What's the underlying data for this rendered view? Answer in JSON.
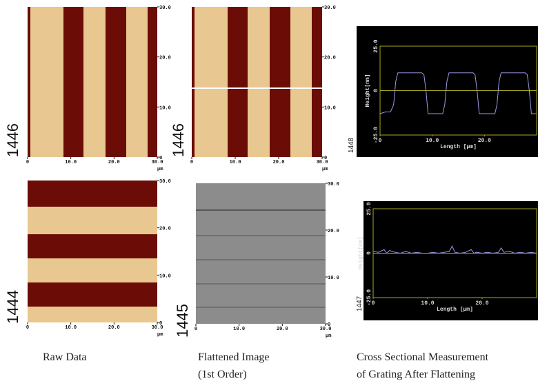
{
  "panels": [
    {
      "label": "1446",
      "unit": "µm",
      "xticks": [
        0,
        {
          "value": 10,
          "label": "10.0"
        },
        {
          "value": 20,
          "label": "20.0"
        },
        {
          "value": 30,
          "label": "30.0"
        }
      ],
      "yticks": [
        0,
        {
          "value": 10,
          "label": "10.0"
        },
        {
          "value": 20,
          "label": "20.0"
        },
        {
          "value": 30,
          "label": "30.0"
        }
      ]
    },
    {
      "label": "1446",
      "unit": "µm",
      "xticks": [
        0,
        {
          "value": 10,
          "label": "10.0"
        },
        {
          "value": 20,
          "label": "20.0"
        },
        {
          "value": 30,
          "label": "30.0"
        }
      ],
      "yticks": [
        0,
        {
          "value": 10,
          "label": "10.0"
        },
        {
          "value": 20,
          "label": "20.0"
        },
        {
          "value": 30,
          "label": "30.0"
        }
      ]
    },
    {
      "label": "1444",
      "unit": "µm",
      "xticks": [
        0,
        {
          "value": 10,
          "label": "10.0"
        },
        {
          "value": 20,
          "label": "20.0"
        },
        {
          "value": 30,
          "label": "30.0"
        }
      ],
      "yticks": [
        0,
        {
          "value": 10,
          "label": "10.0"
        },
        {
          "value": 20,
          "label": "20.0"
        },
        {
          "value": 30,
          "label": "30.0"
        }
      ]
    },
    {
      "label": "1445",
      "unit": "µm",
      "xticks": [
        0,
        {
          "value": 10,
          "label": "10.0"
        },
        {
          "value": 20,
          "label": "20.0"
        },
        {
          "value": 30,
          "label": "30.0"
        }
      ],
      "yticks": [
        0,
        {
          "value": 10,
          "label": "10.0"
        },
        {
          "value": 20,
          "label": "20.0"
        },
        {
          "value": 30,
          "label": "30.0"
        }
      ]
    }
  ],
  "profiles": [
    {
      "label": "1448",
      "x_label": "Length [µm]",
      "y_label": "Height[nm]",
      "xlim": [
        0,
        30
      ],
      "ylim": [
        -25,
        25
      ],
      "xticks": [
        0,
        {
          "value": 10,
          "label": "10.0"
        },
        {
          "value": 20,
          "label": "20.0"
        }
      ],
      "yticks": [
        {
          "value": 25,
          "label": "25.0"
        },
        0,
        {
          "value": -25,
          "label": "-25.0"
        }
      ],
      "x": [
        0,
        1,
        2,
        2.6,
        3,
        3.4,
        8,
        8.4,
        8.8,
        9.2,
        12,
        12.4,
        12.8,
        13.2,
        17.8,
        18.2,
        18.6,
        19,
        22,
        22.4,
        22.8,
        23.2,
        27.8,
        28.2,
        28.6,
        29,
        30
      ],
      "y": [
        -13,
        -12,
        -12,
        -8,
        5,
        10,
        10,
        9,
        0,
        -13,
        -13,
        -8,
        5,
        10,
        10,
        9,
        0,
        -13,
        -13,
        -8,
        5,
        10,
        10,
        9,
        0,
        -13,
        -13
      ]
    },
    {
      "label": "1447",
      "x_label": "Length [µm]",
      "y_label": "Height[nm]",
      "xlim": [
        0,
        30
      ],
      "ylim": [
        -25,
        25
      ],
      "xticks": [
        0,
        {
          "value": 10,
          "label": "10.0"
        },
        {
          "value": 20,
          "label": "20.0"
        }
      ],
      "yticks": [
        {
          "value": 25,
          "label": "25.0"
        },
        0,
        {
          "value": -25,
          "label": "-25.0"
        }
      ],
      "x": [
        0,
        1,
        2,
        2.5,
        3,
        4,
        5,
        6,
        7,
        8,
        9,
        10,
        11,
        12,
        13,
        14,
        14.5,
        15,
        16,
        17,
        18,
        18.5,
        19,
        20,
        21,
        22,
        23,
        23.5,
        24,
        25,
        26,
        27,
        28,
        29,
        30
      ],
      "y": [
        1,
        0.5,
        2,
        0,
        1.5,
        0.5,
        0,
        1,
        0,
        0.5,
        0,
        0,
        0.5,
        0,
        0.5,
        1,
        4,
        0.5,
        0,
        0.5,
        2,
        0,
        0.5,
        0,
        0.5,
        0,
        0.5,
        3,
        0.5,
        1,
        0,
        0.5,
        0,
        0.5,
        0
      ]
    }
  ],
  "captions": [
    "Raw Data",
    "Flattened Image",
    "(1st Order)",
    "Cross Sectional Measurement",
    "of Grating After Flattening"
  ]
}
